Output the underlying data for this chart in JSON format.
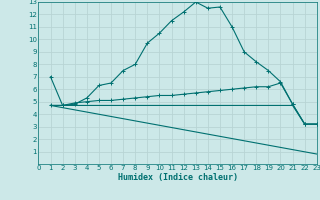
{
  "xlabel": "Humidex (Indice chaleur)",
  "bg_color": "#cce8e8",
  "grid_color": "#b8d4d4",
  "line_color": "#007070",
  "xlim": [
    0,
    23
  ],
  "ylim": [
    0,
    13
  ],
  "xticks": [
    0,
    1,
    2,
    3,
    4,
    5,
    6,
    7,
    8,
    9,
    10,
    11,
    12,
    13,
    14,
    15,
    16,
    17,
    18,
    19,
    20,
    21,
    22,
    23
  ],
  "yticks": [
    1,
    2,
    3,
    4,
    5,
    6,
    7,
    8,
    9,
    10,
    11,
    12,
    13
  ],
  "curve1_x": [
    1,
    2,
    3,
    4,
    5,
    6,
    7,
    8,
    9,
    10,
    11,
    12,
    13,
    14,
    15,
    16,
    17,
    18,
    19,
    20,
    21,
    22,
    23
  ],
  "curve1_y": [
    7.0,
    4.7,
    4.8,
    5.3,
    6.3,
    6.5,
    7.5,
    8.0,
    9.7,
    10.5,
    11.5,
    12.2,
    13.0,
    12.5,
    12.6,
    11.0,
    9.0,
    8.2,
    7.5,
    6.6,
    4.8,
    3.2,
    3.2
  ],
  "curve2_x": [
    1,
    2,
    3,
    4,
    5,
    6,
    7,
    8,
    9,
    10,
    11,
    12,
    13,
    14,
    15,
    16,
    17,
    18,
    19,
    20,
    21,
    22,
    23
  ],
  "curve2_y": [
    4.7,
    4.7,
    4.9,
    5.0,
    5.1,
    5.1,
    5.2,
    5.3,
    5.4,
    5.5,
    5.5,
    5.6,
    5.7,
    5.8,
    5.9,
    6.0,
    6.1,
    6.2,
    6.2,
    6.5,
    4.8,
    3.2,
    3.2
  ],
  "curve3_x": [
    1,
    2,
    3,
    4,
    5,
    6,
    7,
    8,
    9,
    10,
    11,
    12,
    13,
    14,
    15,
    16,
    17,
    18,
    19,
    20,
    21,
    22,
    23
  ],
  "curve3_y": [
    4.7,
    4.7,
    4.7,
    4.7,
    4.7,
    4.7,
    4.7,
    4.7,
    4.7,
    4.7,
    4.7,
    4.7,
    4.7,
    4.7,
    4.7,
    4.7,
    4.7,
    4.7,
    4.7,
    4.7,
    4.7,
    3.2,
    3.2
  ],
  "curve4_x": [
    1,
    23
  ],
  "curve4_y": [
    4.7,
    0.8
  ]
}
